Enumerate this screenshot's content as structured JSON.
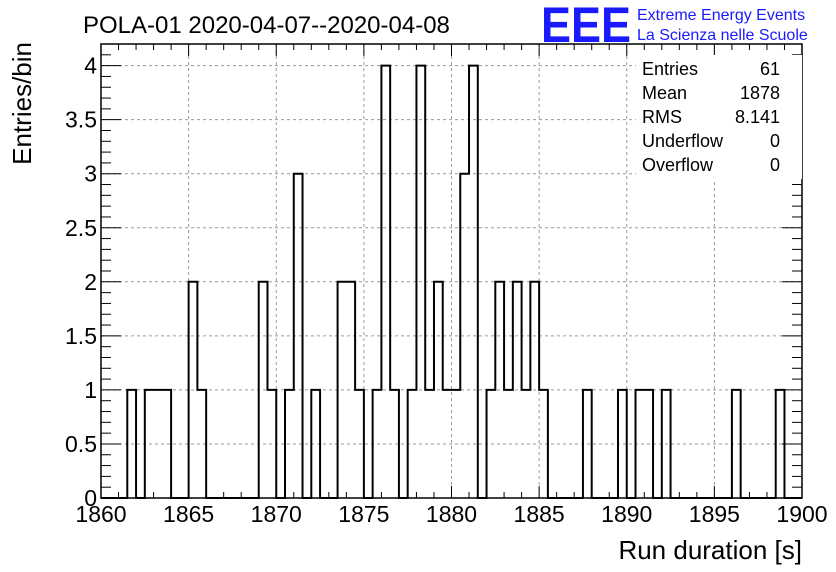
{
  "chart_data": {
    "type": "bar",
    "title": "POLA-01 2020-04-07--2020-04-08",
    "xlabel": "Run duration [s]",
    "ylabel": "Entries/bin",
    "xlim": [
      1860,
      1900
    ],
    "ylim": [
      0,
      4.2
    ],
    "bin_width": 0.5,
    "grid": true,
    "x_ticks": [
      "1860",
      "1865",
      "1870",
      "1875",
      "1880",
      "1885",
      "1890",
      "1895",
      "1900"
    ],
    "y_ticks": [
      "0",
      "0.5",
      "1",
      "1.5",
      "2",
      "2.5",
      "3",
      "3.5",
      "4"
    ],
    "bins": [
      {
        "x": 1861.5,
        "y": 1
      },
      {
        "x": 1862.5,
        "y": 1
      },
      {
        "x": 1863.0,
        "y": 1
      },
      {
        "x": 1863.5,
        "y": 1
      },
      {
        "x": 1865.0,
        "y": 2
      },
      {
        "x": 1865.5,
        "y": 1
      },
      {
        "x": 1869.0,
        "y": 2
      },
      {
        "x": 1869.5,
        "y": 1
      },
      {
        "x": 1870.5,
        "y": 1
      },
      {
        "x": 1871.0,
        "y": 3
      },
      {
        "x": 1872.0,
        "y": 1
      },
      {
        "x": 1873.5,
        "y": 2
      },
      {
        "x": 1874.0,
        "y": 2
      },
      {
        "x": 1874.5,
        "y": 1
      },
      {
        "x": 1875.5,
        "y": 1
      },
      {
        "x": 1876.0,
        "y": 4
      },
      {
        "x": 1876.5,
        "y": 1
      },
      {
        "x": 1877.5,
        "y": 1
      },
      {
        "x": 1878.0,
        "y": 4
      },
      {
        "x": 1878.5,
        "y": 1
      },
      {
        "x": 1879.0,
        "y": 2
      },
      {
        "x": 1879.5,
        "y": 1
      },
      {
        "x": 1880.0,
        "y": 1
      },
      {
        "x": 1880.5,
        "y": 3
      },
      {
        "x": 1881.0,
        "y": 4
      },
      {
        "x": 1882.0,
        "y": 1
      },
      {
        "x": 1882.5,
        "y": 2
      },
      {
        "x": 1883.0,
        "y": 1
      },
      {
        "x": 1883.5,
        "y": 2
      },
      {
        "x": 1884.0,
        "y": 1
      },
      {
        "x": 1884.5,
        "y": 2
      },
      {
        "x": 1885.0,
        "y": 1
      },
      {
        "x": 1887.5,
        "y": 1
      },
      {
        "x": 1889.5,
        "y": 1
      },
      {
        "x": 1890.5,
        "y": 1
      },
      {
        "x": 1891.0,
        "y": 1
      },
      {
        "x": 1892.0,
        "y": 1
      },
      {
        "x": 1896.0,
        "y": 1
      },
      {
        "x": 1898.5,
        "y": 1
      }
    ],
    "stats": [
      {
        "label": "Entries",
        "value": "61"
      },
      {
        "label": "Mean",
        "value": "1878"
      },
      {
        "label": "RMS",
        "value": "8.141"
      },
      {
        "label": "Underflow",
        "value": "0"
      },
      {
        "label": "Overflow",
        "value": "0"
      }
    ]
  },
  "logo": {
    "letters": "EEE",
    "line1": "Extreme Energy Events",
    "line2": "La Scienza nelle Scuole",
    "color": "#1a1aff"
  }
}
